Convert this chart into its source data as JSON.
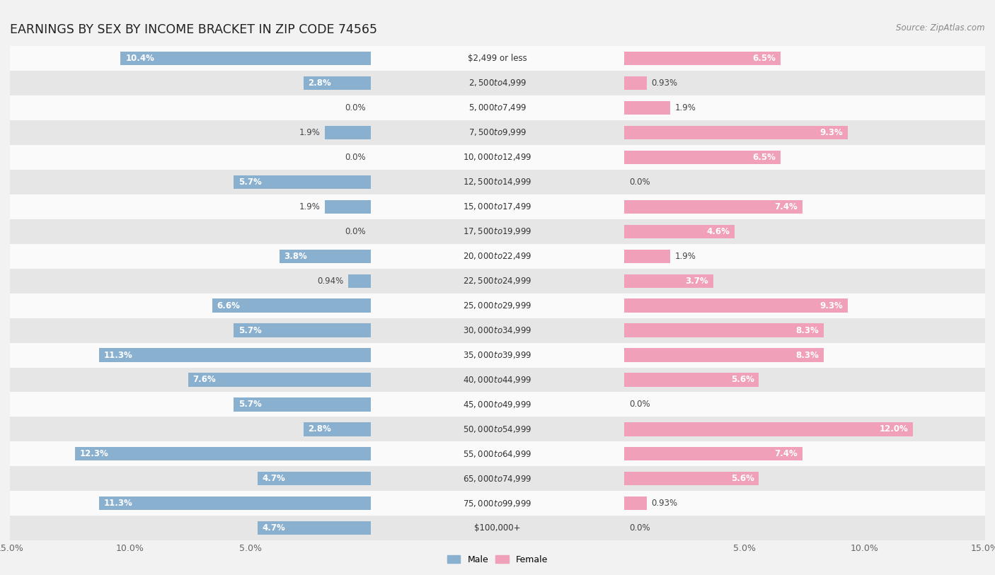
{
  "title": "EARNINGS BY SEX BY INCOME BRACKET IN ZIP CODE 74565",
  "source": "Source: ZipAtlas.com",
  "categories": [
    "$2,499 or less",
    "$2,500 to $4,999",
    "$5,000 to $7,499",
    "$7,500 to $9,999",
    "$10,000 to $12,499",
    "$12,500 to $14,999",
    "$15,000 to $17,499",
    "$17,500 to $19,999",
    "$20,000 to $22,499",
    "$22,500 to $24,999",
    "$25,000 to $29,999",
    "$30,000 to $34,999",
    "$35,000 to $39,999",
    "$40,000 to $44,999",
    "$45,000 to $49,999",
    "$50,000 to $54,999",
    "$55,000 to $64,999",
    "$65,000 to $74,999",
    "$75,000 to $99,999",
    "$100,000+"
  ],
  "male_values": [
    10.4,
    2.8,
    0.0,
    1.9,
    0.0,
    5.7,
    1.9,
    0.0,
    3.8,
    0.94,
    6.6,
    5.7,
    11.3,
    7.6,
    5.7,
    2.8,
    12.3,
    4.7,
    11.3,
    4.7
  ],
  "female_values": [
    6.5,
    0.93,
    1.9,
    9.3,
    6.5,
    0.0,
    7.4,
    4.6,
    1.9,
    3.7,
    9.3,
    8.3,
    8.3,
    5.6,
    0.0,
    12.0,
    7.4,
    5.6,
    0.93,
    0.0
  ],
  "male_color": "#8ab0d0",
  "female_color": "#f0a0b8",
  "background_color": "#f2f2f2",
  "row_color_light": "#fafafa",
  "row_color_dark": "#e6e6e6",
  "xlim": 15.0,
  "title_fontsize": 12.5,
  "tick_fontsize": 9,
  "label_fontsize": 8.5,
  "cat_fontsize": 8.5,
  "source_fontsize": 8.5,
  "inside_label_threshold": 2.5
}
